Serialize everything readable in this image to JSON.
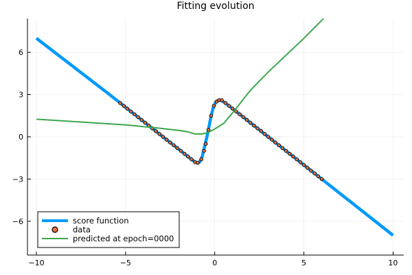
{
  "chart_data": {
    "type": "line",
    "title": "Fitting evolution",
    "xlabel": "",
    "ylabel": "",
    "xlim": [
      -10.5,
      10.6
    ],
    "ylim": [
      -8.4,
      8.4
    ],
    "xticks": [
      -10,
      -5,
      0,
      5,
      10
    ],
    "yticks": [
      -6,
      -3,
      0,
      3,
      6
    ],
    "xtick_labels": [
      "−10",
      "−5",
      "0",
      "5",
      "10"
    ],
    "ytick_labels": [
      "−6",
      "−3",
      "0",
      "3",
      "6"
    ],
    "grid": true,
    "legend_placement": "bottom-left",
    "series": [
      {
        "name": "score function",
        "kind": "line",
        "color": "#009AFA",
        "points": [
          [
            -10,
            7
          ],
          [
            -6,
            3.1
          ],
          [
            -3,
            0.1
          ],
          [
            -2,
            -0.9
          ],
          [
            -1.5,
            -1.4
          ],
          [
            -1.2,
            -1.7
          ],
          [
            -1,
            -1.85
          ],
          [
            -0.85,
            -1.8
          ],
          [
            -0.7,
            -1.4
          ],
          [
            -0.55,
            -0.6
          ],
          [
            -0.4,
            0.2
          ],
          [
            -0.25,
            1.2
          ],
          [
            -0.1,
            2.0
          ],
          [
            0.05,
            2.45
          ],
          [
            0.2,
            2.6
          ],
          [
            0.35,
            2.6
          ],
          [
            0.6,
            2.4
          ],
          [
            1,
            2.0
          ],
          [
            3,
            0
          ],
          [
            6,
            -3
          ],
          [
            10,
            -7
          ]
        ]
      },
      {
        "name": "data",
        "kind": "scatter",
        "color": "#E26F46",
        "points": [
          [
            -5.3,
            2.4
          ],
          [
            -5.1,
            2.2
          ],
          [
            -4.9,
            2.0
          ],
          [
            -4.7,
            1.8
          ],
          [
            -4.5,
            1.6
          ],
          [
            -4.3,
            1.4
          ],
          [
            -4.1,
            1.2
          ],
          [
            -3.9,
            1.0
          ],
          [
            -3.7,
            0.8
          ],
          [
            -3.5,
            0.6
          ],
          [
            -3.3,
            0.4
          ],
          [
            -3.1,
            0.2
          ],
          [
            -2.9,
            0
          ],
          [
            -2.7,
            -0.2
          ],
          [
            -2.5,
            -0.4
          ],
          [
            -2.3,
            -0.6
          ],
          [
            -2.1,
            -0.8
          ],
          [
            -1.9,
            -1.0
          ],
          [
            -1.7,
            -1.2
          ],
          [
            -1.5,
            -1.4
          ],
          [
            -1.3,
            -1.6
          ],
          [
            -1.1,
            -1.8
          ],
          [
            -0.95,
            -1.85
          ],
          [
            -0.75,
            -1.6
          ],
          [
            -0.6,
            -1.0
          ],
          [
            -0.5,
            -0.5
          ],
          [
            -0.35,
            0.5
          ],
          [
            -0.2,
            1.5
          ],
          [
            -0.05,
            2.2
          ],
          [
            0.1,
            2.5
          ],
          [
            0.25,
            2.6
          ],
          [
            0.4,
            2.6
          ],
          [
            0.6,
            2.4
          ],
          [
            0.8,
            2.2
          ],
          [
            1.0,
            2.0
          ],
          [
            1.2,
            1.8
          ],
          [
            1.4,
            1.6
          ],
          [
            1.6,
            1.4
          ],
          [
            1.8,
            1.2
          ],
          [
            2.0,
            1.0
          ],
          [
            2.2,
            0.8
          ],
          [
            2.4,
            0.6
          ],
          [
            2.6,
            0.4
          ],
          [
            2.8,
            0.2
          ],
          [
            3.0,
            0
          ],
          [
            3.2,
            -0.2
          ],
          [
            3.4,
            -0.4
          ],
          [
            3.6,
            -0.6
          ],
          [
            3.8,
            -0.8
          ],
          [
            4.0,
            -1.0
          ],
          [
            4.2,
            -1.2
          ],
          [
            4.4,
            -1.4
          ],
          [
            4.6,
            -1.6
          ],
          [
            4.8,
            -1.8
          ],
          [
            5.0,
            -2.0
          ],
          [
            5.2,
            -2.2
          ],
          [
            5.4,
            -2.4
          ],
          [
            5.6,
            -2.6
          ],
          [
            5.8,
            -2.8
          ],
          [
            6.0,
            -3.0
          ]
        ]
      },
      {
        "name": "predicted at epoch=0000",
        "kind": "line",
        "color": "#3BA64A",
        "points": [
          [
            -10,
            1.25
          ],
          [
            -5,
            0.85
          ],
          [
            -3,
            0.6
          ],
          [
            -2,
            0.45
          ],
          [
            -1.5,
            0.35
          ],
          [
            -1.1,
            0.2
          ],
          [
            -0.7,
            0.2
          ],
          [
            -0.4,
            0.3
          ],
          [
            0,
            0.55
          ],
          [
            0.5,
            0.95
          ],
          [
            1,
            1.7
          ],
          [
            1.5,
            2.5
          ],
          [
            2,
            3.3
          ],
          [
            3,
            4.6
          ],
          [
            4,
            5.8
          ],
          [
            5,
            7
          ],
          [
            6.1,
            8.4
          ]
        ]
      }
    ]
  }
}
